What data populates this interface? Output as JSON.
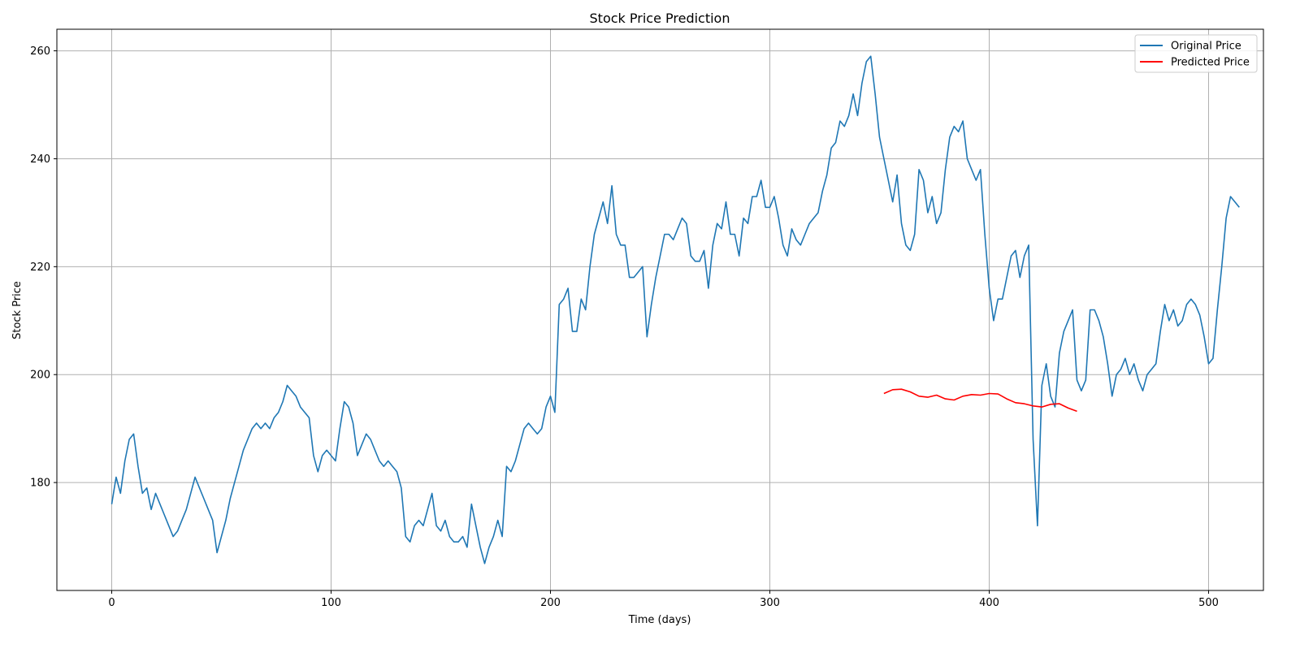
{
  "chart_data": {
    "type": "line",
    "title": "Stock Price Prediction",
    "xlabel": "Time (days)",
    "ylabel": "Stock Price",
    "xlim": [
      -25,
      525
    ],
    "ylim": [
      160,
      264
    ],
    "xticks": [
      0,
      100,
      200,
      300,
      400,
      500
    ],
    "yticks": [
      180,
      200,
      220,
      240,
      260
    ],
    "grid": true,
    "legend_position": "top-right",
    "series": [
      {
        "name": "Original Price",
        "color": "#1f77b4",
        "points": [
          [
            0,
            176
          ],
          [
            2,
            181
          ],
          [
            4,
            178
          ],
          [
            6,
            184
          ],
          [
            8,
            188
          ],
          [
            10,
            189
          ],
          [
            12,
            183
          ],
          [
            14,
            178
          ],
          [
            16,
            179
          ],
          [
            18,
            175
          ],
          [
            20,
            178
          ],
          [
            22,
            176
          ],
          [
            24,
            174
          ],
          [
            26,
            172
          ],
          [
            28,
            170
          ],
          [
            30,
            171
          ],
          [
            32,
            173
          ],
          [
            34,
            175
          ],
          [
            36,
            178
          ],
          [
            38,
            181
          ],
          [
            40,
            179
          ],
          [
            42,
            177
          ],
          [
            44,
            175
          ],
          [
            46,
            173
          ],
          [
            48,
            167
          ],
          [
            50,
            170
          ],
          [
            52,
            173
          ],
          [
            54,
            177
          ],
          [
            56,
            180
          ],
          [
            58,
            183
          ],
          [
            60,
            186
          ],
          [
            62,
            188
          ],
          [
            64,
            190
          ],
          [
            66,
            191
          ],
          [
            68,
            190
          ],
          [
            70,
            191
          ],
          [
            72,
            190
          ],
          [
            74,
            192
          ],
          [
            76,
            193
          ],
          [
            78,
            195
          ],
          [
            80,
            198
          ],
          [
            82,
            197
          ],
          [
            84,
            196
          ],
          [
            86,
            194
          ],
          [
            88,
            193
          ],
          [
            90,
            192
          ],
          [
            92,
            185
          ],
          [
            94,
            182
          ],
          [
            96,
            185
          ],
          [
            98,
            186
          ],
          [
            100,
            185
          ],
          [
            102,
            184
          ],
          [
            104,
            190
          ],
          [
            106,
            195
          ],
          [
            108,
            194
          ],
          [
            110,
            191
          ],
          [
            112,
            185
          ],
          [
            114,
            187
          ],
          [
            116,
            189
          ],
          [
            118,
            188
          ],
          [
            120,
            186
          ],
          [
            122,
            184
          ],
          [
            124,
            183
          ],
          [
            126,
            184
          ],
          [
            128,
            183
          ],
          [
            130,
            182
          ],
          [
            132,
            179
          ],
          [
            134,
            170
          ],
          [
            136,
            169
          ],
          [
            138,
            172
          ],
          [
            140,
            173
          ],
          [
            142,
            172
          ],
          [
            144,
            175
          ],
          [
            146,
            178
          ],
          [
            148,
            172
          ],
          [
            150,
            171
          ],
          [
            152,
            173
          ],
          [
            154,
            170
          ],
          [
            156,
            169
          ],
          [
            158,
            169
          ],
          [
            160,
            170
          ],
          [
            162,
            168
          ],
          [
            164,
            176
          ],
          [
            166,
            172
          ],
          [
            168,
            168
          ],
          [
            170,
            165
          ],
          [
            172,
            168
          ],
          [
            174,
            170
          ],
          [
            176,
            173
          ],
          [
            178,
            170
          ],
          [
            180,
            183
          ],
          [
            182,
            182
          ],
          [
            184,
            184
          ],
          [
            186,
            187
          ],
          [
            188,
            190
          ],
          [
            190,
            191
          ],
          [
            192,
            190
          ],
          [
            194,
            189
          ],
          [
            196,
            190
          ],
          [
            198,
            194
          ],
          [
            200,
            196
          ],
          [
            202,
            193
          ],
          [
            204,
            213
          ],
          [
            206,
            214
          ],
          [
            208,
            216
          ],
          [
            210,
            208
          ],
          [
            212,
            208
          ],
          [
            214,
            214
          ],
          [
            216,
            212
          ],
          [
            218,
            220
          ],
          [
            220,
            226
          ],
          [
            222,
            229
          ],
          [
            224,
            232
          ],
          [
            226,
            228
          ],
          [
            228,
            235
          ],
          [
            230,
            226
          ],
          [
            232,
            224
          ],
          [
            234,
            224
          ],
          [
            236,
            218
          ],
          [
            238,
            218
          ],
          [
            240,
            219
          ],
          [
            242,
            220
          ],
          [
            244,
            207
          ],
          [
            246,
            213
          ],
          [
            248,
            218
          ],
          [
            250,
            222
          ],
          [
            252,
            226
          ],
          [
            254,
            226
          ],
          [
            256,
            225
          ],
          [
            258,
            227
          ],
          [
            260,
            229
          ],
          [
            262,
            228
          ],
          [
            264,
            222
          ],
          [
            266,
            221
          ],
          [
            268,
            221
          ],
          [
            270,
            223
          ],
          [
            272,
            216
          ],
          [
            274,
            224
          ],
          [
            276,
            228
          ],
          [
            278,
            227
          ],
          [
            280,
            232
          ],
          [
            282,
            226
          ],
          [
            284,
            226
          ],
          [
            286,
            222
          ],
          [
            288,
            229
          ],
          [
            290,
            228
          ],
          [
            292,
            233
          ],
          [
            294,
            233
          ],
          [
            296,
            236
          ],
          [
            298,
            231
          ],
          [
            300,
            231
          ],
          [
            302,
            233
          ],
          [
            304,
            229
          ],
          [
            306,
            224
          ],
          [
            308,
            222
          ],
          [
            310,
            227
          ],
          [
            312,
            225
          ],
          [
            314,
            224
          ],
          [
            316,
            226
          ],
          [
            318,
            228
          ],
          [
            320,
            229
          ],
          [
            322,
            230
          ],
          [
            324,
            234
          ],
          [
            326,
            237
          ],
          [
            328,
            242
          ],
          [
            330,
            243
          ],
          [
            332,
            247
          ],
          [
            334,
            246
          ],
          [
            336,
            248
          ],
          [
            338,
            252
          ],
          [
            340,
            248
          ],
          [
            342,
            254
          ],
          [
            344,
            258
          ],
          [
            346,
            259
          ],
          [
            348,
            252
          ],
          [
            350,
            244
          ],
          [
            352,
            240
          ],
          [
            354,
            236
          ],
          [
            356,
            232
          ],
          [
            358,
            237
          ],
          [
            360,
            228
          ],
          [
            362,
            224
          ],
          [
            364,
            223
          ],
          [
            366,
            226
          ],
          [
            368,
            238
          ],
          [
            370,
            236
          ],
          [
            372,
            230
          ],
          [
            374,
            233
          ],
          [
            376,
            228
          ],
          [
            378,
            230
          ],
          [
            380,
            238
          ],
          [
            382,
            244
          ],
          [
            384,
            246
          ],
          [
            386,
            245
          ],
          [
            388,
            247
          ],
          [
            390,
            240
          ],
          [
            392,
            238
          ],
          [
            394,
            236
          ],
          [
            396,
            238
          ],
          [
            398,
            226
          ],
          [
            400,
            216
          ],
          [
            402,
            210
          ],
          [
            404,
            214
          ],
          [
            406,
            214
          ],
          [
            408,
            218
          ],
          [
            410,
            222
          ],
          [
            412,
            223
          ],
          [
            414,
            218
          ],
          [
            416,
            222
          ],
          [
            418,
            224
          ],
          [
            420,
            188
          ],
          [
            422,
            172
          ],
          [
            424,
            198
          ],
          [
            426,
            202
          ],
          [
            428,
            196
          ],
          [
            430,
            194
          ],
          [
            432,
            204
          ],
          [
            434,
            208
          ],
          [
            436,
            210
          ],
          [
            438,
            212
          ],
          [
            440,
            199
          ],
          [
            442,
            197
          ],
          [
            444,
            199
          ],
          [
            446,
            212
          ],
          [
            448,
            212
          ],
          [
            450,
            210
          ],
          [
            452,
            207
          ],
          [
            454,
            202
          ],
          [
            456,
            196
          ],
          [
            458,
            200
          ],
          [
            460,
            201
          ],
          [
            462,
            203
          ],
          [
            464,
            200
          ],
          [
            466,
            202
          ],
          [
            468,
            199
          ],
          [
            470,
            197
          ],
          [
            472,
            200
          ],
          [
            474,
            201
          ],
          [
            476,
            202
          ],
          [
            478,
            208
          ],
          [
            480,
            213
          ],
          [
            482,
            210
          ],
          [
            484,
            212
          ],
          [
            486,
            209
          ],
          [
            488,
            210
          ],
          [
            490,
            213
          ],
          [
            492,
            214
          ],
          [
            494,
            213
          ],
          [
            496,
            211
          ],
          [
            498,
            207
          ],
          [
            500,
            202
          ],
          [
            502,
            203
          ],
          [
            504,
            212
          ],
          [
            506,
            220
          ],
          [
            508,
            229
          ],
          [
            510,
            233
          ],
          [
            512,
            232
          ],
          [
            514,
            231
          ]
        ]
      },
      {
        "name": "Predicted Price",
        "color": "#ff0000",
        "points": [
          [
            352,
            196.5
          ],
          [
            356,
            197.2
          ],
          [
            360,
            197.3
          ],
          [
            364,
            196.8
          ],
          [
            368,
            196.0
          ],
          [
            372,
            195.8
          ],
          [
            376,
            196.2
          ],
          [
            380,
            195.5
          ],
          [
            384,
            195.3
          ],
          [
            388,
            196.0
          ],
          [
            392,
            196.3
          ],
          [
            396,
            196.2
          ],
          [
            400,
            196.5
          ],
          [
            404,
            196.4
          ],
          [
            408,
            195.5
          ],
          [
            412,
            194.8
          ],
          [
            416,
            194.6
          ],
          [
            420,
            194.2
          ],
          [
            424,
            194.0
          ],
          [
            428,
            194.5
          ],
          [
            432,
            194.6
          ],
          [
            436,
            193.8
          ],
          [
            440,
            193.2
          ]
        ]
      }
    ]
  }
}
